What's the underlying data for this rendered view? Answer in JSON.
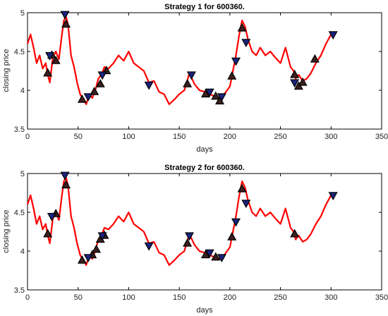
{
  "chart_data": [
    {
      "type": "line",
      "title": "Strategy 1 for 600360.",
      "xlabel": "days",
      "ylabel": "closing price",
      "xlim": [
        0,
        350
      ],
      "ylim": [
        3.5,
        5
      ],
      "xticks": [
        "0",
        "50",
        "100",
        "150",
        "200",
        "250",
        "300",
        "350"
      ],
      "yticks": [
        "3.5",
        "4",
        "4.5",
        "5"
      ],
      "grid": false,
      "series": [
        {
          "color": "#ff0000",
          "x": [
            0,
            3,
            6,
            9,
            12,
            15,
            18,
            20,
            22,
            25,
            28,
            31,
            34,
            36,
            38,
            40,
            43,
            46,
            49,
            52,
            55,
            58,
            61,
            64,
            67,
            70,
            73,
            76,
            80,
            85,
            90,
            95,
            100,
            105,
            110,
            115,
            120,
            125,
            130,
            135,
            140,
            145,
            150,
            155,
            160,
            165,
            170,
            175,
            180,
            185,
            190,
            195,
            200,
            203,
            206,
            209,
            212,
            215,
            218,
            222,
            226,
            230,
            235,
            240,
            245,
            250,
            255,
            260,
            263,
            265,
            268,
            272,
            276,
            280,
            285,
            290,
            295,
            300,
            302
          ],
          "y": [
            4.6,
            4.72,
            4.55,
            4.35,
            4.45,
            4.28,
            4.35,
            4.2,
            4.1,
            4.42,
            4.5,
            4.4,
            4.72,
            4.9,
            4.95,
            4.85,
            4.45,
            4.3,
            4.1,
            3.95,
            3.88,
            3.82,
            3.95,
            3.9,
            4.0,
            4.15,
            4.2,
            4.3,
            4.28,
            4.35,
            4.45,
            4.38,
            4.5,
            4.35,
            4.3,
            4.25,
            4.1,
            4.12,
            3.98,
            3.95,
            3.82,
            3.88,
            3.95,
            4.0,
            4.22,
            4.08,
            4.0,
            3.98,
            3.95,
            3.92,
            3.9,
            3.96,
            4.05,
            4.25,
            4.45,
            4.7,
            4.9,
            4.82,
            4.65,
            4.5,
            4.45,
            4.55,
            4.45,
            4.5,
            4.42,
            4.35,
            4.55,
            4.3,
            4.25,
            4.15,
            4.2,
            4.12,
            4.15,
            4.22,
            4.35,
            4.45,
            4.6,
            4.72,
            4.75
          ]
        }
      ],
      "buy_markers": {
        "color": "#3b1f1f",
        "x": [
          20,
          24,
          28,
          38,
          54,
          66,
          72,
          78,
          158,
          176,
          186,
          190,
          202,
          212,
          264,
          268,
          272,
          284
        ],
        "y": [
          4.22,
          4.45,
          4.38,
          4.85,
          3.88,
          3.98,
          4.08,
          4.25,
          4.08,
          3.95,
          3.92,
          3.86,
          4.18,
          4.8,
          4.2,
          4.05,
          4.1,
          4.4
        ]
      },
      "sell_markers": {
        "color": "#1a237e",
        "x": [
          22,
          37,
          60,
          74,
          120,
          162,
          180,
          192,
          206,
          216,
          264,
          302
        ],
        "y": [
          4.45,
          4.98,
          3.92,
          4.2,
          4.07,
          4.2,
          3.98,
          3.92,
          4.38,
          4.62,
          4.1,
          4.72
        ]
      }
    },
    {
      "type": "line",
      "title": "Strategy 2 for 600360.",
      "xlabel": "days",
      "ylabel": "closing price",
      "xlim": [
        0,
        350
      ],
      "ylim": [
        3.5,
        5
      ],
      "xticks": [
        "0",
        "50",
        "100",
        "150",
        "200",
        "250",
        "300",
        "350"
      ],
      "yticks": [
        "3.5",
        "4",
        "4.5",
        "5"
      ],
      "grid": false,
      "series": [
        {
          "color": "#ff0000",
          "x": [
            0,
            3,
            6,
            9,
            12,
            15,
            18,
            20,
            22,
            25,
            28,
            31,
            34,
            36,
            38,
            40,
            43,
            46,
            49,
            52,
            55,
            58,
            61,
            64,
            67,
            70,
            73,
            76,
            80,
            85,
            90,
            95,
            100,
            105,
            110,
            115,
            120,
            125,
            130,
            135,
            140,
            145,
            150,
            155,
            160,
            165,
            170,
            175,
            180,
            185,
            190,
            195,
            200,
            203,
            206,
            209,
            212,
            215,
            218,
            222,
            226,
            230,
            235,
            240,
            245,
            250,
            255,
            260,
            263,
            265,
            268,
            272,
            276,
            280,
            285,
            290,
            295,
            300,
            302
          ],
          "y": [
            4.6,
            4.72,
            4.55,
            4.35,
            4.45,
            4.28,
            4.35,
            4.2,
            4.1,
            4.42,
            4.5,
            4.4,
            4.72,
            4.9,
            4.95,
            4.85,
            4.45,
            4.3,
            4.1,
            3.95,
            3.88,
            3.82,
            3.95,
            3.9,
            4.0,
            4.15,
            4.2,
            4.3,
            4.28,
            4.35,
            4.45,
            4.38,
            4.5,
            4.35,
            4.3,
            4.25,
            4.1,
            4.12,
            3.98,
            3.95,
            3.82,
            3.88,
            3.95,
            4.0,
            4.22,
            4.08,
            4.0,
            3.98,
            3.95,
            3.92,
            3.9,
            3.96,
            4.05,
            4.25,
            4.45,
            4.7,
            4.9,
            4.82,
            4.65,
            4.5,
            4.45,
            4.55,
            4.45,
            4.5,
            4.42,
            4.35,
            4.55,
            4.3,
            4.25,
            4.15,
            4.2,
            4.12,
            4.15,
            4.22,
            4.35,
            4.45,
            4.6,
            4.72,
            4.75
          ]
        }
      ],
      "buy_markers": {
        "color": "#3b1f1f",
        "x": [
          20,
          28,
          38,
          54,
          64,
          68,
          72,
          76,
          158,
          176,
          186,
          202,
          212,
          264
        ],
        "y": [
          4.22,
          4.48,
          4.85,
          3.88,
          3.95,
          4.02,
          4.15,
          4.2,
          4.1,
          3.95,
          3.92,
          4.18,
          4.8,
          4.22
        ]
      },
      "sell_markers": {
        "color": "#1a237e",
        "x": [
          24,
          37,
          60,
          74,
          120,
          160,
          180,
          192,
          206,
          216,
          302
        ],
        "y": [
          4.45,
          4.98,
          3.92,
          4.2,
          4.07,
          4.2,
          3.98,
          3.92,
          4.38,
          4.62,
          4.72
        ]
      }
    }
  ]
}
